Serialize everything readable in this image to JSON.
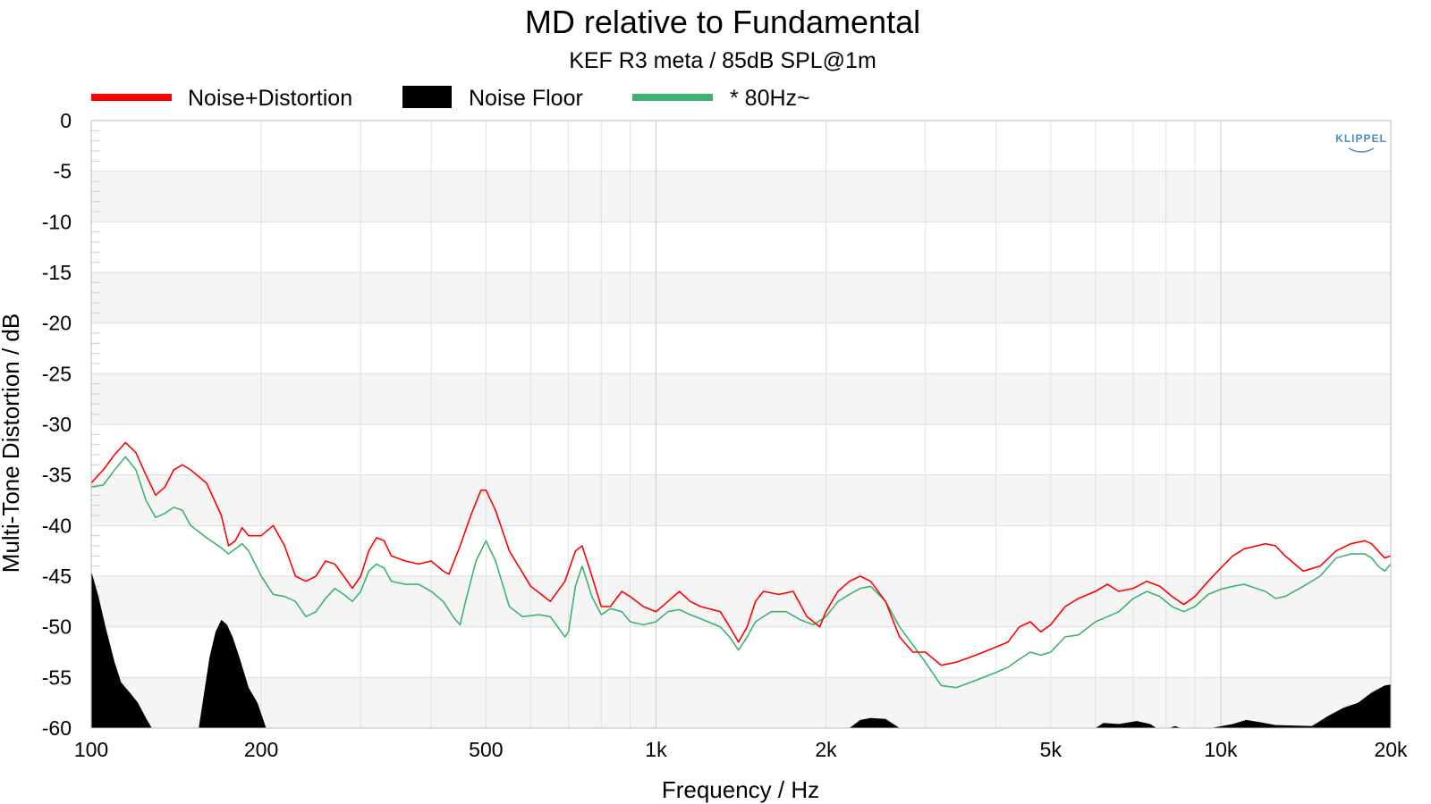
{
  "chart_data": {
    "type": "line",
    "title": "MD relative to Fundamental",
    "subtitle": "KEF R3 meta / 85dB SPL@1m",
    "xlabel": "Frequency / Hz",
    "ylabel": "Multi-Tone Distortion / dB",
    "x_scale": "log",
    "xlim": [
      100,
      20000
    ],
    "ylim": [
      -60,
      0
    ],
    "x_ticks": [
      100,
      200,
      500,
      1000,
      2000,
      5000,
      10000,
      20000
    ],
    "x_tick_labels": [
      "100",
      "200",
      "500",
      "1k",
      "2k",
      "5k",
      "10k",
      "20k"
    ],
    "y_ticks": [
      0,
      -5,
      -10,
      -15,
      -20,
      -25,
      -30,
      -35,
      -40,
      -45,
      -50,
      -55,
      -60
    ],
    "y_tick_labels": [
      "0",
      "-5",
      "-10",
      "-15",
      "-20",
      "-25",
      "-30",
      "-35",
      "-40",
      "-45",
      "-50",
      "-55",
      "-60"
    ],
    "grid": true,
    "legend_position": "top-left",
    "watermark": "KLIPPEL",
    "series": [
      {
        "name": "Noise+Distortion",
        "color": "#ff0000",
        "style": "line",
        "points": [
          [
            100,
            -35.8
          ],
          [
            105,
            -34.5
          ],
          [
            110,
            -33
          ],
          [
            115,
            -31.8
          ],
          [
            120,
            -32.8
          ],
          [
            125,
            -35
          ],
          [
            130,
            -37
          ],
          [
            135,
            -36.2
          ],
          [
            140,
            -34.5
          ],
          [
            145,
            -34
          ],
          [
            150,
            -34.5
          ],
          [
            160,
            -35.8
          ],
          [
            170,
            -39
          ],
          [
            175,
            -42
          ],
          [
            180,
            -41.5
          ],
          [
            185,
            -40.2
          ],
          [
            190,
            -41
          ],
          [
            200,
            -41
          ],
          [
            210,
            -40
          ],
          [
            220,
            -42
          ],
          [
            230,
            -45
          ],
          [
            240,
            -45.5
          ],
          [
            250,
            -45
          ],
          [
            260,
            -43.5
          ],
          [
            270,
            -43.8
          ],
          [
            280,
            -45
          ],
          [
            290,
            -46.2
          ],
          [
            300,
            -45
          ],
          [
            310,
            -42.5
          ],
          [
            320,
            -41.2
          ],
          [
            330,
            -41.5
          ],
          [
            340,
            -43
          ],
          [
            360,
            -43.5
          ],
          [
            380,
            -43.8
          ],
          [
            400,
            -43.5
          ],
          [
            420,
            -44.5
          ],
          [
            430,
            -44.8
          ],
          [
            450,
            -42
          ],
          [
            470,
            -39
          ],
          [
            490,
            -36.5
          ],
          [
            500,
            -36.5
          ],
          [
            520,
            -38.5
          ],
          [
            550,
            -42.5
          ],
          [
            600,
            -46
          ],
          [
            650,
            -47.5
          ],
          [
            690,
            -45.5
          ],
          [
            720,
            -42.5
          ],
          [
            740,
            -42
          ],
          [
            770,
            -45
          ],
          [
            800,
            -48
          ],
          [
            830,
            -48
          ],
          [
            870,
            -46.5
          ],
          [
            900,
            -47
          ],
          [
            950,
            -48
          ],
          [
            1000,
            -48.5
          ],
          [
            1050,
            -47.5
          ],
          [
            1100,
            -46.5
          ],
          [
            1150,
            -47.5
          ],
          [
            1200,
            -48
          ],
          [
            1300,
            -48.5
          ],
          [
            1350,
            -50
          ],
          [
            1400,
            -51.5
          ],
          [
            1450,
            -50
          ],
          [
            1500,
            -47.5
          ],
          [
            1550,
            -46.5
          ],
          [
            1650,
            -46.8
          ],
          [
            1750,
            -46.5
          ],
          [
            1850,
            -49
          ],
          [
            1950,
            -50
          ],
          [
            2000,
            -48.5
          ],
          [
            2100,
            -46.5
          ],
          [
            2200,
            -45.5
          ],
          [
            2300,
            -45
          ],
          [
            2400,
            -45.5
          ],
          [
            2550,
            -47.5
          ],
          [
            2700,
            -51
          ],
          [
            2850,
            -52.5
          ],
          [
            3000,
            -52.5
          ],
          [
            3200,
            -53.8
          ],
          [
            3400,
            -53.5
          ],
          [
            3600,
            -53
          ],
          [
            3800,
            -52.5
          ],
          [
            4000,
            -52
          ],
          [
            4200,
            -51.5
          ],
          [
            4400,
            -50
          ],
          [
            4600,
            -49.5
          ],
          [
            4800,
            -50.5
          ],
          [
            5000,
            -49.8
          ],
          [
            5300,
            -48
          ],
          [
            5600,
            -47.2
          ],
          [
            6000,
            -46.5
          ],
          [
            6300,
            -45.8
          ],
          [
            6600,
            -46.5
          ],
          [
            7000,
            -46.2
          ],
          [
            7400,
            -45.5
          ],
          [
            7800,
            -46
          ],
          [
            8200,
            -47
          ],
          [
            8600,
            -47.8
          ],
          [
            9000,
            -47
          ],
          [
            9500,
            -45.5
          ],
          [
            10000,
            -44.2
          ],
          [
            10500,
            -43
          ],
          [
            11000,
            -42.3
          ],
          [
            12000,
            -41.8
          ],
          [
            12500,
            -42
          ],
          [
            13000,
            -43
          ],
          [
            14000,
            -44.5
          ],
          [
            15000,
            -44
          ],
          [
            16000,
            -42.5
          ],
          [
            17000,
            -41.8
          ],
          [
            18000,
            -41.5
          ],
          [
            18500,
            -41.8
          ],
          [
            19000,
            -42.5
          ],
          [
            19500,
            -43.2
          ],
          [
            20000,
            -43
          ]
        ]
      },
      {
        "name": "Noise Floor",
        "color": "#000000",
        "style": "area",
        "points": [
          [
            100,
            -44.5
          ],
          [
            103,
            -47
          ],
          [
            106,
            -50
          ],
          [
            110,
            -53.5
          ],
          [
            113,
            -55.5
          ],
          [
            117,
            -56.5
          ],
          [
            121,
            -57.5
          ],
          [
            125,
            -59
          ],
          [
            128,
            -60
          ],
          [
            155,
            -60
          ],
          [
            158,
            -57
          ],
          [
            162,
            -53
          ],
          [
            166,
            -50.5
          ],
          [
            170,
            -49.3
          ],
          [
            174,
            -49.8
          ],
          [
            178,
            -51
          ],
          [
            183,
            -53
          ],
          [
            190,
            -56
          ],
          [
            197,
            -57.5
          ],
          [
            204,
            -60
          ],
          [
            2200,
            -60
          ],
          [
            2300,
            -59.2
          ],
          [
            2400,
            -59
          ],
          [
            2550,
            -59.1
          ],
          [
            2700,
            -60
          ],
          [
            6000,
            -60
          ],
          [
            6200,
            -59.5
          ],
          [
            6600,
            -59.6
          ],
          [
            7100,
            -59.3
          ],
          [
            7500,
            -59.6
          ],
          [
            7700,
            -60
          ],
          [
            8100,
            -60
          ],
          [
            8300,
            -59.8
          ],
          [
            8500,
            -60
          ],
          [
            9600,
            -60
          ],
          [
            10500,
            -59.6
          ],
          [
            11100,
            -59.2
          ],
          [
            11700,
            -59.4
          ],
          [
            12500,
            -59.7
          ],
          [
            14500,
            -59.8
          ],
          [
            15500,
            -58.8
          ],
          [
            16500,
            -58
          ],
          [
            17500,
            -57.5
          ],
          [
            18500,
            -56.5
          ],
          [
            19500,
            -55.8
          ],
          [
            20000,
            -55.7
          ],
          [
            20000,
            -60
          ]
        ]
      },
      {
        "name": "* 80Hz~",
        "color": "#3cb371",
        "style": "line",
        "points": [
          [
            100,
            -36.2
          ],
          [
            105,
            -36
          ],
          [
            110,
            -34.5
          ],
          [
            115,
            -33.2
          ],
          [
            120,
            -34.5
          ],
          [
            125,
            -37.5
          ],
          [
            130,
            -39.2
          ],
          [
            135,
            -38.8
          ],
          [
            140,
            -38.2
          ],
          [
            145,
            -38.5
          ],
          [
            150,
            -40
          ],
          [
            160,
            -41.2
          ],
          [
            170,
            -42.2
          ],
          [
            175,
            -42.8
          ],
          [
            185,
            -41.8
          ],
          [
            190,
            -42.5
          ],
          [
            200,
            -45
          ],
          [
            210,
            -46.8
          ],
          [
            220,
            -47
          ],
          [
            230,
            -47.5
          ],
          [
            240,
            -49
          ],
          [
            250,
            -48.5
          ],
          [
            260,
            -47.2
          ],
          [
            270,
            -46.2
          ],
          [
            280,
            -46.8
          ],
          [
            290,
            -47.5
          ],
          [
            300,
            -46.5
          ],
          [
            310,
            -44.5
          ],
          [
            320,
            -43.8
          ],
          [
            330,
            -44.2
          ],
          [
            340,
            -45.5
          ],
          [
            360,
            -45.8
          ],
          [
            380,
            -45.8
          ],
          [
            400,
            -46.5
          ],
          [
            420,
            -47.5
          ],
          [
            440,
            -49.2
          ],
          [
            450,
            -49.8
          ],
          [
            460,
            -47.5
          ],
          [
            480,
            -43.5
          ],
          [
            500,
            -41.5
          ],
          [
            520,
            -43.5
          ],
          [
            550,
            -48
          ],
          [
            580,
            -49
          ],
          [
            620,
            -48.8
          ],
          [
            650,
            -49
          ],
          [
            690,
            -51
          ],
          [
            700,
            -50.5
          ],
          [
            720,
            -46
          ],
          [
            740,
            -44
          ],
          [
            770,
            -47
          ],
          [
            800,
            -48.8
          ],
          [
            830,
            -48.2
          ],
          [
            870,
            -48.5
          ],
          [
            900,
            -49.5
          ],
          [
            950,
            -49.8
          ],
          [
            1000,
            -49.5
          ],
          [
            1050,
            -48.5
          ],
          [
            1100,
            -48.3
          ],
          [
            1150,
            -48.8
          ],
          [
            1200,
            -49.2
          ],
          [
            1300,
            -50
          ],
          [
            1350,
            -51
          ],
          [
            1400,
            -52.3
          ],
          [
            1450,
            -51
          ],
          [
            1500,
            -49.5
          ],
          [
            1600,
            -48.5
          ],
          [
            1700,
            -48.5
          ],
          [
            1800,
            -49.3
          ],
          [
            1900,
            -49.8
          ],
          [
            2000,
            -49
          ],
          [
            2100,
            -47.5
          ],
          [
            2200,
            -46.8
          ],
          [
            2300,
            -46.2
          ],
          [
            2400,
            -46
          ],
          [
            2550,
            -47.5
          ],
          [
            2700,
            -50
          ],
          [
            2850,
            -51.8
          ],
          [
            3000,
            -53.5
          ],
          [
            3200,
            -55.8
          ],
          [
            3400,
            -56
          ],
          [
            3600,
            -55.5
          ],
          [
            3800,
            -55
          ],
          [
            4000,
            -54.5
          ],
          [
            4200,
            -54
          ],
          [
            4400,
            -53.2
          ],
          [
            4600,
            -52.5
          ],
          [
            4800,
            -52.8
          ],
          [
            5000,
            -52.5
          ],
          [
            5300,
            -51
          ],
          [
            5600,
            -50.8
          ],
          [
            6000,
            -49.5
          ],
          [
            6300,
            -49
          ],
          [
            6600,
            -48.5
          ],
          [
            7000,
            -47.2
          ],
          [
            7400,
            -46.5
          ],
          [
            7800,
            -47
          ],
          [
            8200,
            -48
          ],
          [
            8600,
            -48.5
          ],
          [
            9000,
            -48
          ],
          [
            9500,
            -46.8
          ],
          [
            10000,
            -46.3
          ],
          [
            10500,
            -46
          ],
          [
            11000,
            -45.8
          ],
          [
            12000,
            -46.5
          ],
          [
            12500,
            -47.2
          ],
          [
            13000,
            -47
          ],
          [
            14000,
            -46
          ],
          [
            15000,
            -45
          ],
          [
            16000,
            -43.2
          ],
          [
            17000,
            -42.8
          ],
          [
            18000,
            -42.8
          ],
          [
            18500,
            -43.2
          ],
          [
            19000,
            -44
          ],
          [
            19500,
            -44.5
          ],
          [
            20000,
            -43.8
          ]
        ]
      }
    ]
  }
}
